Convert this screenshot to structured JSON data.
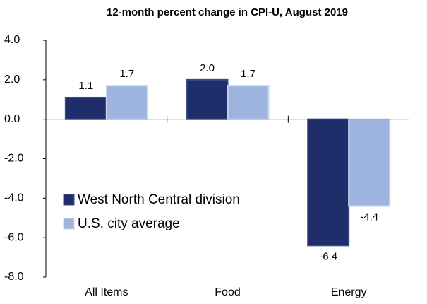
{
  "chart_data": {
    "type": "bar",
    "title": "12-month percent change in CPI-U, August 2019",
    "categories": [
      "All Items",
      "Food",
      "Energy"
    ],
    "series": [
      {
        "name": "West North Central division",
        "color": "#1f2d6b",
        "values": [
          1.1,
          2.0,
          -6.4
        ],
        "value_labels": [
          "1.1",
          "2.0",
          "-6.4"
        ]
      },
      {
        "name": "U.S. city average",
        "color": "#9db4df",
        "values": [
          1.7,
          1.7,
          -4.4
        ],
        "value_labels": [
          "1.7",
          "1.7",
          "-4.4"
        ]
      }
    ],
    "ylim": [
      -8,
      4
    ],
    "yticks": [
      {
        "value": -8,
        "label": "-8.0"
      },
      {
        "value": -6,
        "label": "-6.0"
      },
      {
        "value": -4,
        "label": "-4.0"
      },
      {
        "value": -2,
        "label": "-2.0"
      },
      {
        "value": 0,
        "label": "0.0"
      },
      {
        "value": 2,
        "label": "2.0"
      },
      {
        "value": 4,
        "label": "4.0"
      }
    ],
    "legend": "left"
  }
}
